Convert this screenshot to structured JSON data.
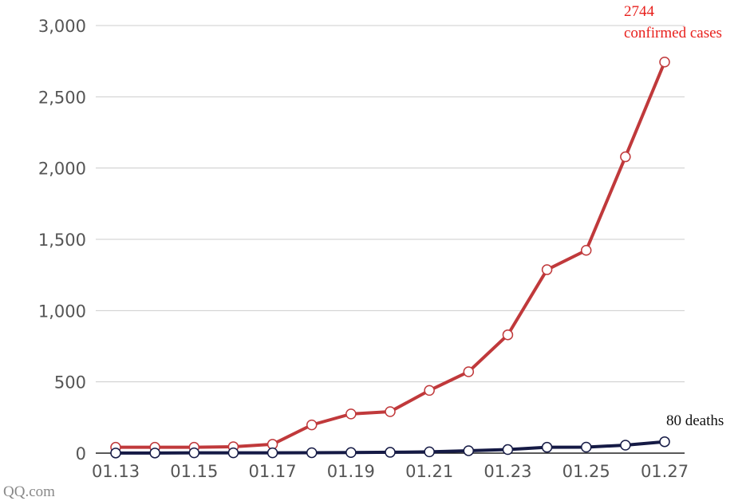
{
  "chart_data": {
    "type": "line",
    "categories": [
      "01.13",
      null,
      "01.15",
      null,
      "01.17",
      null,
      "01.19",
      null,
      "01.21",
      null,
      "01.23",
      null,
      "01.25",
      null,
      "01.27"
    ],
    "series": [
      {
        "name": "confirmed cases",
        "color": "#c0393b",
        "values": [
          41,
          41,
          41,
          45,
          62,
          198,
          275,
          291,
          440,
          571,
          830,
          1287,
          1423,
          2079,
          2744
        ]
      },
      {
        "name": "deaths",
        "color": "#151a45",
        "values": [
          1,
          1,
          2,
          2,
          2,
          3,
          4,
          6,
          9,
          17,
          25,
          41,
          42,
          56,
          80
        ]
      }
    ],
    "ylim": [
      0,
      3000
    ],
    "yticks": [
      0,
      500,
      {
        "value": 1000,
        "label": "1,000"
      },
      {
        "value": 1500,
        "label": "1,500"
      },
      {
        "value": 2000,
        "label": "2,000"
      },
      {
        "value": 2500,
        "label": "2,500"
      },
      {
        "value": 3000,
        "label": "3,000"
      }
    ],
    "grid": true,
    "annotations": [
      {
        "lines": [
          "2744",
          "confirmed cases"
        ],
        "color": "#e8201c"
      },
      {
        "lines": [
          "80 deaths"
        ],
        "color": "#111111"
      }
    ],
    "source": "QQ.com"
  }
}
